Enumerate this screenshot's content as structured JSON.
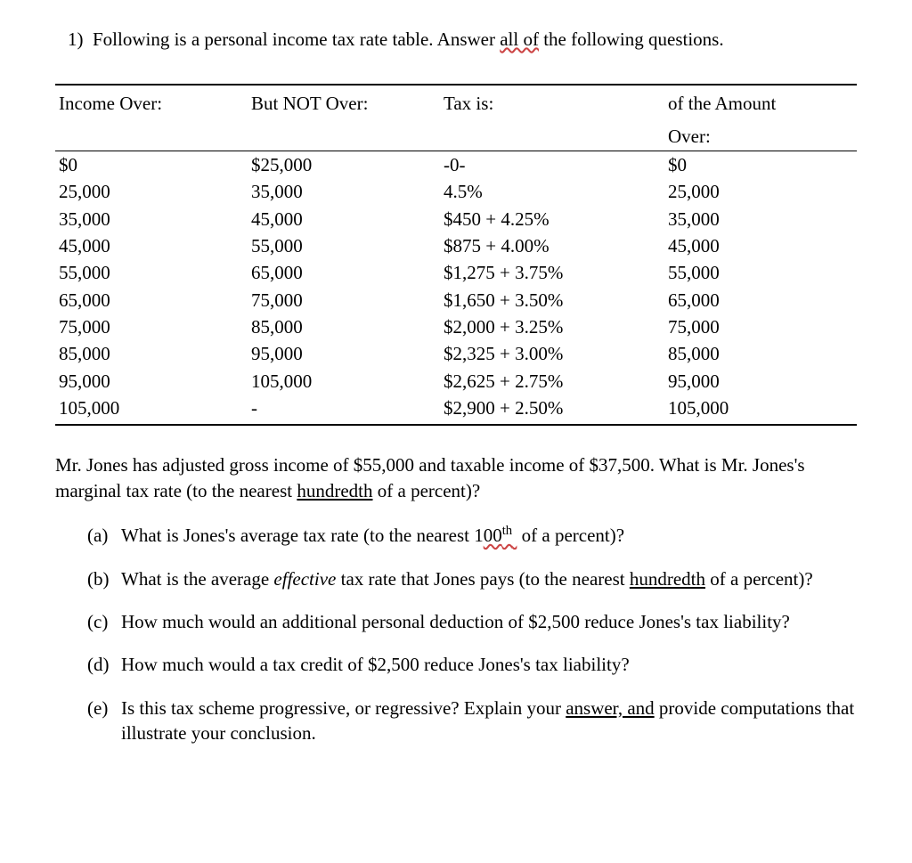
{
  "lead": {
    "prefix": "1)  Following is a personal income tax rate table. Answer ",
    "underlined": "all of",
    "suffix": " the following questions."
  },
  "table": {
    "headers": {
      "c1": "Income Over:",
      "c2": "But NOT Over:",
      "c3": "Tax is:",
      "c4a": "of the Amount",
      "c4b": "Over:"
    },
    "rows": [
      {
        "c1": "$0",
        "c2": "$25,000",
        "c3": "-0-",
        "c4": "$0"
      },
      {
        "c1": "25,000",
        "c2": "35,000",
        "c3": "4.5%",
        "c4": "25,000"
      },
      {
        "c1": "35,000",
        "c2": "45,000",
        "c3": "$450 + 4.25%",
        "c4": "35,000"
      },
      {
        "c1": "45,000",
        "c2": "55,000",
        "c3": "$875 + 4.00%",
        "c4": "45,000"
      },
      {
        "c1": "55,000",
        "c2": "65,000",
        "c3": "$1,275 + 3.75%",
        "c4": "55,000"
      },
      {
        "c1": "65,000",
        "c2": "75,000",
        "c3": "$1,650 + 3.50%",
        "c4": "65,000"
      },
      {
        "c1": "75,000",
        "c2": "85,000",
        "c3": "$2,000 + 3.25%",
        "c4": "75,000"
      },
      {
        "c1": "85,000",
        "c2": "95,000",
        "c3": "$2,325 + 3.00%",
        "c4": "85,000"
      },
      {
        "c1": "95,000",
        "c2": "105,000",
        "c3": "$2,625 + 2.75%",
        "c4": "95,000"
      },
      {
        "c1": "105,000",
        "c2": "-",
        "c3": "$2,900 + 2.50%",
        "c4": "105,000"
      }
    ]
  },
  "context": {
    "p1": "Mr. Jones has adjusted gross income of $55,000 and taxable income of $37,500. What is Mr. Jones's marginal tax rate (to the nearest ",
    "u1": "hundredth",
    "p2": " of a percent)?"
  },
  "questions": {
    "a": {
      "marker": "(a)",
      "t1": "What is Jones's average tax rate (to the nearest 1",
      "sup_pre": "00",
      "sup": "th",
      "t2": " of a percent)?"
    },
    "b": {
      "marker": "(b)",
      "t1": "What is the average ",
      "i": "effective",
      "t2": " tax rate that Jones pays (to the nearest ",
      "u": "hundredth",
      "t3": " of a percent)?"
    },
    "c": {
      "marker": "(c)",
      "t1": "How much would an additional personal deduction of $2,500 reduce Jones's tax liability?"
    },
    "d": {
      "marker": "(d)",
      "t1": "How much would a tax credit of $2,500 reduce Jones's tax liability?"
    },
    "e": {
      "marker": "(e)",
      "t1": "Is this tax scheme progressive, or regressive? Explain your ",
      "u": "answer, and",
      "t2": " provide computations that illustrate your conclusion."
    }
  }
}
